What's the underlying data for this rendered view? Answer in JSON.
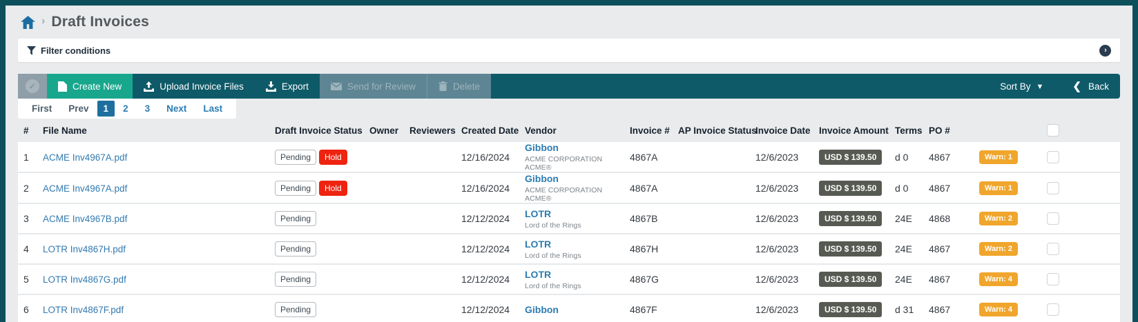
{
  "breadcrumb": {
    "title": "Draft Invoices"
  },
  "filter_bar": {
    "label": "Filter conditions"
  },
  "toolbar": {
    "create_new": "Create New",
    "upload": "Upload Invoice Files",
    "export": "Export",
    "send_for_review": "Send for Review",
    "delete": "Delete",
    "sort_by": "Sort By",
    "back": "Back"
  },
  "pagination": {
    "items": [
      {
        "label": "First",
        "style": "muted"
      },
      {
        "label": "Prev",
        "style": "muted"
      },
      {
        "label": "1",
        "style": "active"
      },
      {
        "label": "2",
        "style": "link"
      },
      {
        "label": "3",
        "style": "link"
      },
      {
        "label": "Next",
        "style": "link"
      },
      {
        "label": "Last",
        "style": "link"
      }
    ]
  },
  "table": {
    "columns": [
      "#",
      "File Name",
      "Draft Invoice Status",
      "Owner",
      "Reviewers",
      "Created Date",
      "Vendor",
      "Invoice #",
      "AP Invoice Status",
      "Invoice Date",
      "Invoice Amount",
      "Terms",
      "PO #"
    ],
    "rows": [
      {
        "num": "1",
        "file_name": "ACME Inv4967A.pdf",
        "statuses": [
          "Pending",
          "Hold"
        ],
        "owner": "",
        "reviewers": "",
        "created_date": "12/16/2024",
        "vendor": "Gibbon",
        "vendor_sub": "ACME CORPORATION ACME®",
        "invoice_num": "4867A",
        "ap_status": "",
        "invoice_date": "12/6/2023",
        "amount": "USD $ 139.50",
        "terms": "d 0",
        "po": "4867",
        "warn": "Warn: 1"
      },
      {
        "num": "2",
        "file_name": "ACME Inv4967A.pdf",
        "statuses": [
          "Pending",
          "Hold"
        ],
        "owner": "",
        "reviewers": "",
        "created_date": "12/16/2024",
        "vendor": "Gibbon",
        "vendor_sub": "ACME CORPORATION ACME®",
        "invoice_num": "4867A",
        "ap_status": "",
        "invoice_date": "12/6/2023",
        "amount": "USD $ 139.50",
        "terms": "d 0",
        "po": "4867",
        "warn": "Warn: 1"
      },
      {
        "num": "3",
        "file_name": "ACME Inv4967B.pdf",
        "statuses": [
          "Pending"
        ],
        "owner": "",
        "reviewers": "",
        "created_date": "12/12/2024",
        "vendor": "LOTR",
        "vendor_sub": "Lord of the Rings",
        "invoice_num": "4867B",
        "ap_status": "",
        "invoice_date": "12/6/2023",
        "amount": "USD $ 139.50",
        "terms": "24E",
        "po": "4868",
        "warn": "Warn: 2"
      },
      {
        "num": "4",
        "file_name": "LOTR Inv4867H.pdf",
        "statuses": [
          "Pending"
        ],
        "owner": "",
        "reviewers": "",
        "created_date": "12/12/2024",
        "vendor": "LOTR",
        "vendor_sub": "Lord of the Rings",
        "invoice_num": "4867H",
        "ap_status": "",
        "invoice_date": "12/6/2023",
        "amount": "USD $ 139.50",
        "terms": "24E",
        "po": "4867",
        "warn": "Warn: 2"
      },
      {
        "num": "5",
        "file_name": "LOTR Inv4867G.pdf",
        "statuses": [
          "Pending"
        ],
        "owner": "",
        "reviewers": "",
        "created_date": "12/12/2024",
        "vendor": "LOTR",
        "vendor_sub": "Lord of the Rings",
        "invoice_num": "4867G",
        "ap_status": "",
        "invoice_date": "12/6/2023",
        "amount": "USD $ 139.50",
        "terms": "24E",
        "po": "4867",
        "warn": "Warn: 4"
      },
      {
        "num": "6",
        "file_name": "LOTR Inv4867F.pdf",
        "statuses": [
          "Pending"
        ],
        "owner": "",
        "reviewers": "",
        "created_date": "12/12/2024",
        "vendor": "Gibbon",
        "vendor_sub": "",
        "invoice_num": "4867F",
        "ap_status": "",
        "invoice_date": "12/6/2023",
        "amount": "USD $ 139.50",
        "terms": "d 31",
        "po": "4867",
        "warn": "Warn: 4"
      }
    ]
  },
  "colors": {
    "chrome_teal": "#0d4f5b",
    "toolbar_teal": "#0e5a68",
    "create_green": "#18a78d",
    "disabled_btn": "#5e8593",
    "page_bg": "#e9ebed",
    "link_blue": "#2a7cb2",
    "active_page_blue": "#1e6f9f",
    "hold_red": "#ee2310",
    "amount_gray": "#575a52",
    "warn_orange": "#f0a62c"
  }
}
